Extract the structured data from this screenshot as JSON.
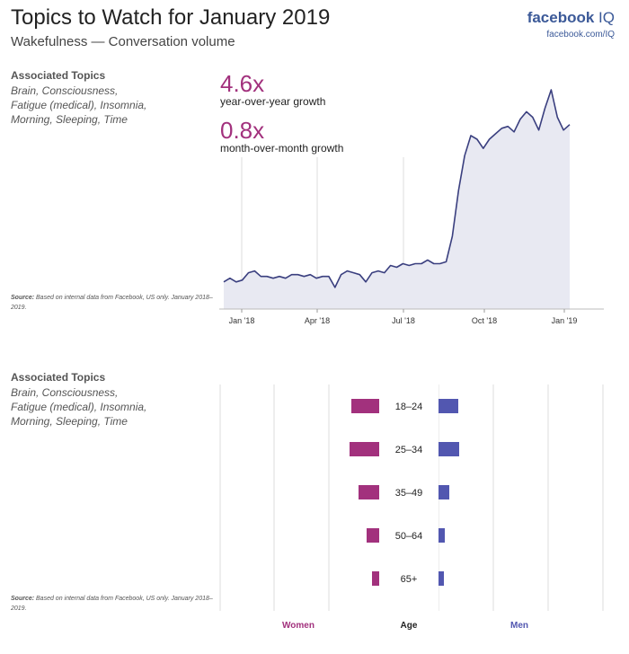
{
  "header": {
    "title": "Topics to Watch for January 2019",
    "subtitle": "Wakefulness — Conversation volume",
    "brand_main": "facebook",
    "brand_iq": " IQ",
    "brand_url": "facebook.com/IQ"
  },
  "section1": {
    "topics_heading": "Associated Topics",
    "topics_list": "Brain, Consciousness, Fatigue (medical), Insomnia, Morning, Sleeping, Time",
    "source_label": "Source:",
    "source_text": " Based on internal data from Facebook, US only. January 2018–2019.",
    "yoy_value": "4.6x",
    "yoy_label": "year-over-year growth",
    "mom_value": "0.8x",
    "mom_label": "month-over-month growth"
  },
  "section2": {
    "topics_heading": "Associated Topics",
    "topics_list": "Brain, Consciousness, Fatigue (medical), Insomnia, Morning, Sleeping, Time",
    "source_label": "Source:",
    "source_text": " Based on internal data from Facebook, US only. January 2018–2019."
  },
  "colors": {
    "line": "#3a3f7f",
    "area": "#e8e9f2",
    "women": "#a2317d",
    "men": "#5257b0",
    "grid": "#dddddd"
  },
  "chart_data": [
    {
      "type": "area",
      "title": "",
      "xlabel": "",
      "ylabel": "",
      "x_ticks": [
        "Jan '18",
        "Apr '18",
        "Jul '18",
        "Oct '18",
        "Jan '19"
      ],
      "ylim": [
        0,
        100
      ],
      "series": [
        {
          "values": [
            5,
            7,
            5,
            6,
            10,
            11,
            8,
            8,
            7,
            8,
            7,
            9,
            9,
            8,
            9,
            7,
            8,
            8,
            2,
            9,
            11,
            10,
            9,
            5,
            10,
            11,
            10,
            14,
            13,
            15,
            14,
            15,
            15,
            17,
            15,
            15,
            16,
            30,
            55,
            74,
            85,
            83,
            78,
            83,
            86,
            89,
            90,
            87,
            94,
            98,
            95,
            88,
            100,
            110,
            95,
            88,
            91
          ]
        }
      ],
      "grid": "vertical lines at tick positions"
    },
    {
      "type": "bar",
      "orientation": "horizontal-butterfly",
      "categories": [
        "18–24",
        "25–34",
        "35–49",
        "50–64",
        "65+"
      ],
      "category_label": "Age",
      "series": [
        {
          "name": "Women",
          "values": [
            31,
            33,
            23,
            14,
            8
          ]
        },
        {
          "name": "Men",
          "values": [
            22,
            23,
            12,
            7,
            6
          ]
        }
      ],
      "grid": "vertical lines"
    }
  ]
}
